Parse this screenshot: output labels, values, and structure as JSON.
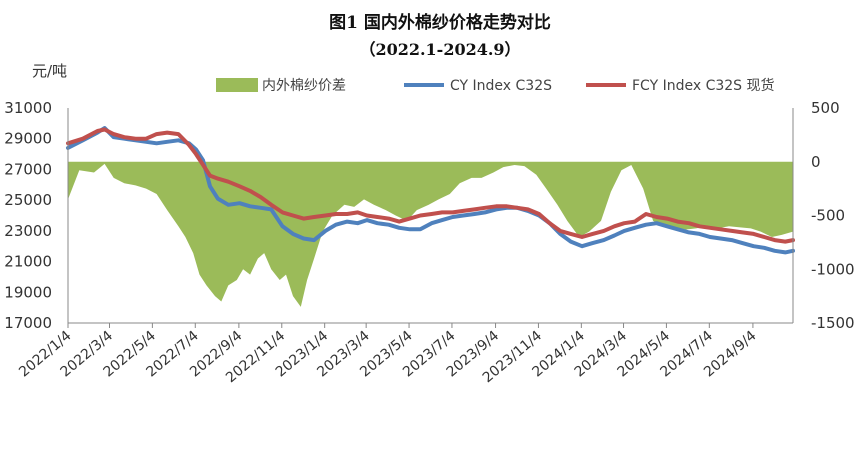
{
  "chart_data": {
    "type": "line",
    "title": "图1 国内外棉纱价格走势对比",
    "subtitle": "（2022.1-2024.9）",
    "ylabel": "元/吨",
    "ylim": [
      17000,
      31000
    ],
    "y2lim": [
      -1500,
      500
    ],
    "yticks": [
      "31000",
      "29000",
      "27000",
      "25000",
      "23000",
      "21000",
      "19000",
      "17000"
    ],
    "y2ticks": [
      "500",
      "0",
      "-500",
      "-1000",
      "-1500"
    ],
    "grid": false,
    "legend_position": "top",
    "x_range": [
      "2022-01-04",
      "2024-10-31"
    ],
    "categories": [
      "2022/1/4",
      "2022/3/4",
      "2022/5/4",
      "2022/7/4",
      "2022/9/4",
      "2022/11/4",
      "2023/1/4",
      "2023/3/4",
      "2023/5/4",
      "2023/7/4",
      "2023/9/4",
      "2023/11/4",
      "2024/1/4",
      "2024/3/4",
      "2024/5/4",
      "2024/7/4",
      "2024/9/4"
    ],
    "series": [
      {
        "name": "内外棉纱价差",
        "kind": "area",
        "axis": "right",
        "color": "#9BBB59",
        "x": [
          "2022-01-04",
          "2022-01-20",
          "2022-02-10",
          "2022-02-25",
          "2022-03-10",
          "2022-03-25",
          "2022-04-10",
          "2022-04-25",
          "2022-05-10",
          "2022-05-25",
          "2022-06-10",
          "2022-06-20",
          "2022-07-01",
          "2022-07-10",
          "2022-07-20",
          "2022-08-01",
          "2022-08-10",
          "2022-08-20",
          "2022-09-01",
          "2022-09-10",
          "2022-09-20",
          "2022-10-01",
          "2022-10-10",
          "2022-10-20",
          "2022-11-01",
          "2022-11-10",
          "2022-11-20",
          "2022-12-01",
          "2022-12-10",
          "2022-12-20",
          "2023-01-01",
          "2023-01-15",
          "2023-02-01",
          "2023-02-15",
          "2023-03-01",
          "2023-03-15",
          "2023-04-01",
          "2023-04-15",
          "2023-05-01",
          "2023-05-15",
          "2023-06-01",
          "2023-06-15",
          "2023-07-01",
          "2023-07-15",
          "2023-08-01",
          "2023-08-15",
          "2023-09-01",
          "2023-09-15",
          "2023-10-01",
          "2023-10-15",
          "2023-11-01",
          "2023-11-15",
          "2023-12-01",
          "2023-12-15",
          "2024-01-01",
          "2024-01-15",
          "2024-02-01",
          "2024-02-15",
          "2024-03-01",
          "2024-03-15",
          "2024-04-01",
          "2024-04-15",
          "2024-05-01",
          "2024-05-15",
          "2024-06-01",
          "2024-06-15",
          "2024-07-01",
          "2024-07-15",
          "2024-08-01",
          "2024-08-15",
          "2024-09-01",
          "2024-09-15",
          "2024-10-01",
          "2024-10-15",
          "2024-10-31"
        ],
        "values": [
          -350,
          -80,
          -100,
          -20,
          -150,
          -200,
          -220,
          -250,
          -300,
          -450,
          -600,
          -700,
          -850,
          -1050,
          -1150,
          -1250,
          -1300,
          -1150,
          -1100,
          -1000,
          -1050,
          -900,
          -850,
          -1000,
          -1100,
          -1050,
          -1250,
          -1350,
          -1100,
          -900,
          -650,
          -500,
          -400,
          -420,
          -350,
          -400,
          -450,
          -500,
          -550,
          -450,
          -400,
          -350,
          -300,
          -200,
          -150,
          -150,
          -100,
          -50,
          -30,
          -40,
          -120,
          -250,
          -400,
          -550,
          -700,
          -650,
          -550,
          -280,
          -80,
          -30,
          -250,
          -550,
          -600,
          -620,
          -630,
          -620,
          -600,
          -620,
          -600,
          -610,
          -620,
          -650,
          -700,
          -680,
          -650
        ]
      },
      {
        "name": "CY Index C32S",
        "kind": "line",
        "axis": "left",
        "color": "#4F81BD",
        "x": [
          "2022-01-04",
          "2022-01-25",
          "2022-02-15",
          "2022-02-25",
          "2022-03-10",
          "2022-03-25",
          "2022-04-10",
          "2022-04-25",
          "2022-05-10",
          "2022-05-25",
          "2022-06-10",
          "2022-06-25",
          "2022-07-05",
          "2022-07-15",
          "2022-07-25",
          "2022-08-05",
          "2022-08-20",
          "2022-09-05",
          "2022-09-20",
          "2022-10-05",
          "2022-10-20",
          "2022-11-05",
          "2022-11-20",
          "2022-12-05",
          "2022-12-20",
          "2023-01-05",
          "2023-01-20",
          "2023-02-05",
          "2023-02-20",
          "2023-03-05",
          "2023-03-20",
          "2023-04-05",
          "2023-04-20",
          "2023-05-05",
          "2023-05-20",
          "2023-06-05",
          "2023-06-20",
          "2023-07-05",
          "2023-07-20",
          "2023-08-05",
          "2023-08-20",
          "2023-09-05",
          "2023-09-20",
          "2023-10-05",
          "2023-10-20",
          "2023-11-05",
          "2023-11-20",
          "2023-12-05",
          "2023-12-20",
          "2024-01-05",
          "2024-01-20",
          "2024-02-05",
          "2024-02-20",
          "2024-03-05",
          "2024-03-20",
          "2024-04-05",
          "2024-04-20",
          "2024-05-05",
          "2024-05-20",
          "2024-06-05",
          "2024-06-20",
          "2024-07-05",
          "2024-07-20",
          "2024-08-05",
          "2024-08-20",
          "2024-09-05",
          "2024-09-20",
          "2024-10-05",
          "2024-10-20",
          "2024-10-31"
        ],
        "values": [
          28400,
          28900,
          29400,
          29700,
          29100,
          29000,
          28900,
          28800,
          28700,
          28800,
          28900,
          28700,
          28300,
          27600,
          25900,
          25100,
          24700,
          24800,
          24600,
          24500,
          24400,
          23300,
          22800,
          22500,
          22400,
          23000,
          23400,
          23600,
          23500,
          23700,
          23500,
          23400,
          23200,
          23100,
          23100,
          23500,
          23700,
          23900,
          24000,
          24100,
          24200,
          24400,
          24500,
          24500,
          24300,
          24000,
          23500,
          22800,
          22300,
          22000,
          22200,
          22400,
          22700,
          23000,
          23200,
          23400,
          23500,
          23300,
          23100,
          22900,
          22800,
          22600,
          22500,
          22400,
          22200,
          22000,
          21900,
          21700,
          21600,
          21700
        ]
      },
      {
        "name": "FCY Index C32S 现货",
        "kind": "line",
        "axis": "left",
        "color": "#C0504D",
        "x": [
          "2022-01-04",
          "2022-01-25",
          "2022-02-15",
          "2022-02-25",
          "2022-03-10",
          "2022-03-25",
          "2022-04-10",
          "2022-04-25",
          "2022-05-10",
          "2022-05-25",
          "2022-06-10",
          "2022-06-25",
          "2022-07-05",
          "2022-07-15",
          "2022-07-25",
          "2022-08-05",
          "2022-08-20",
          "2022-09-05",
          "2022-09-20",
          "2022-10-05",
          "2022-10-20",
          "2022-11-05",
          "2022-11-20",
          "2022-12-05",
          "2022-12-20",
          "2023-01-05",
          "2023-01-20",
          "2023-02-05",
          "2023-02-20",
          "2023-03-05",
          "2023-03-20",
          "2023-04-05",
          "2023-04-20",
          "2023-05-05",
          "2023-05-20",
          "2023-06-05",
          "2023-06-20",
          "2023-07-05",
          "2023-07-20",
          "2023-08-05",
          "2023-08-20",
          "2023-09-05",
          "2023-09-20",
          "2023-10-05",
          "2023-10-20",
          "2023-11-05",
          "2023-11-20",
          "2023-12-05",
          "2023-12-20",
          "2024-01-05",
          "2024-01-20",
          "2024-02-05",
          "2024-02-20",
          "2024-03-05",
          "2024-03-20",
          "2024-04-05",
          "2024-04-20",
          "2024-05-05",
          "2024-05-20",
          "2024-06-05",
          "2024-06-20",
          "2024-07-05",
          "2024-07-20",
          "2024-08-05",
          "2024-08-20",
          "2024-09-05",
          "2024-09-20",
          "2024-10-05",
          "2024-10-20",
          "2024-10-31"
        ],
        "values": [
          28700,
          29000,
          29500,
          29600,
          29300,
          29100,
          29000,
          29000,
          29300,
          29400,
          29300,
          28600,
          28000,
          27300,
          26600,
          26400,
          26200,
          25900,
          25600,
          25200,
          24700,
          24200,
          24000,
          23800,
          23900,
          24000,
          24100,
          24100,
          24200,
          24000,
          23900,
          23800,
          23600,
          23800,
          24000,
          24100,
          24200,
          24200,
          24300,
          24400,
          24500,
          24600,
          24600,
          24500,
          24400,
          24100,
          23500,
          23000,
          22800,
          22600,
          22800,
          23000,
          23300,
          23500,
          23600,
          24100,
          23900,
          23800,
          23600,
          23500,
          23300,
          23200,
          23100,
          23000,
          22900,
          22800,
          22600,
          22400,
          22300,
          22400
        ]
      }
    ]
  }
}
